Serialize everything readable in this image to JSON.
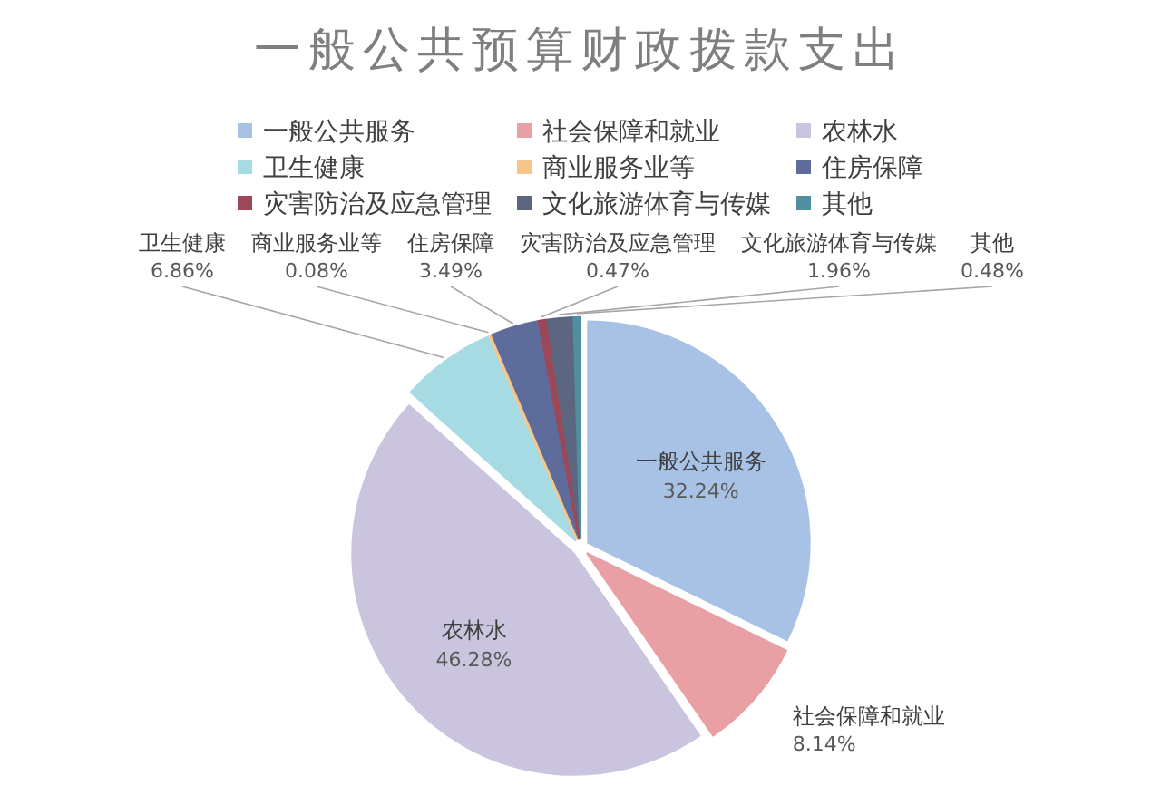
{
  "chart_data": {
    "type": "pie",
    "title": "一般公共预算财政拨款支出",
    "categories": [
      "一般公共服务",
      "社会保障和就业",
      "农林水",
      "卫生健康",
      "商业服务业等",
      "住房保障",
      "灾害防治及应急管理",
      "文化旅游体育与传媒",
      "其他"
    ],
    "values": [
      32.24,
      8.14,
      46.28,
      6.86,
      0.08,
      3.49,
      0.47,
      1.96,
      0.48
    ],
    "value_labels": [
      "32.24%",
      "8.14%",
      "46.28%",
      "6.86%",
      "0.08%",
      "3.49%",
      "0.47%",
      "1.96%",
      "0.48%"
    ],
    "colors": [
      "#a8c2e6",
      "#e8a0a4",
      "#cbc4de",
      "#a6dbe3",
      "#f5c58a",
      "#5e6c9c",
      "#9c4858",
      "#5c6680",
      "#4f8fa0"
    ],
    "legend": "top"
  }
}
